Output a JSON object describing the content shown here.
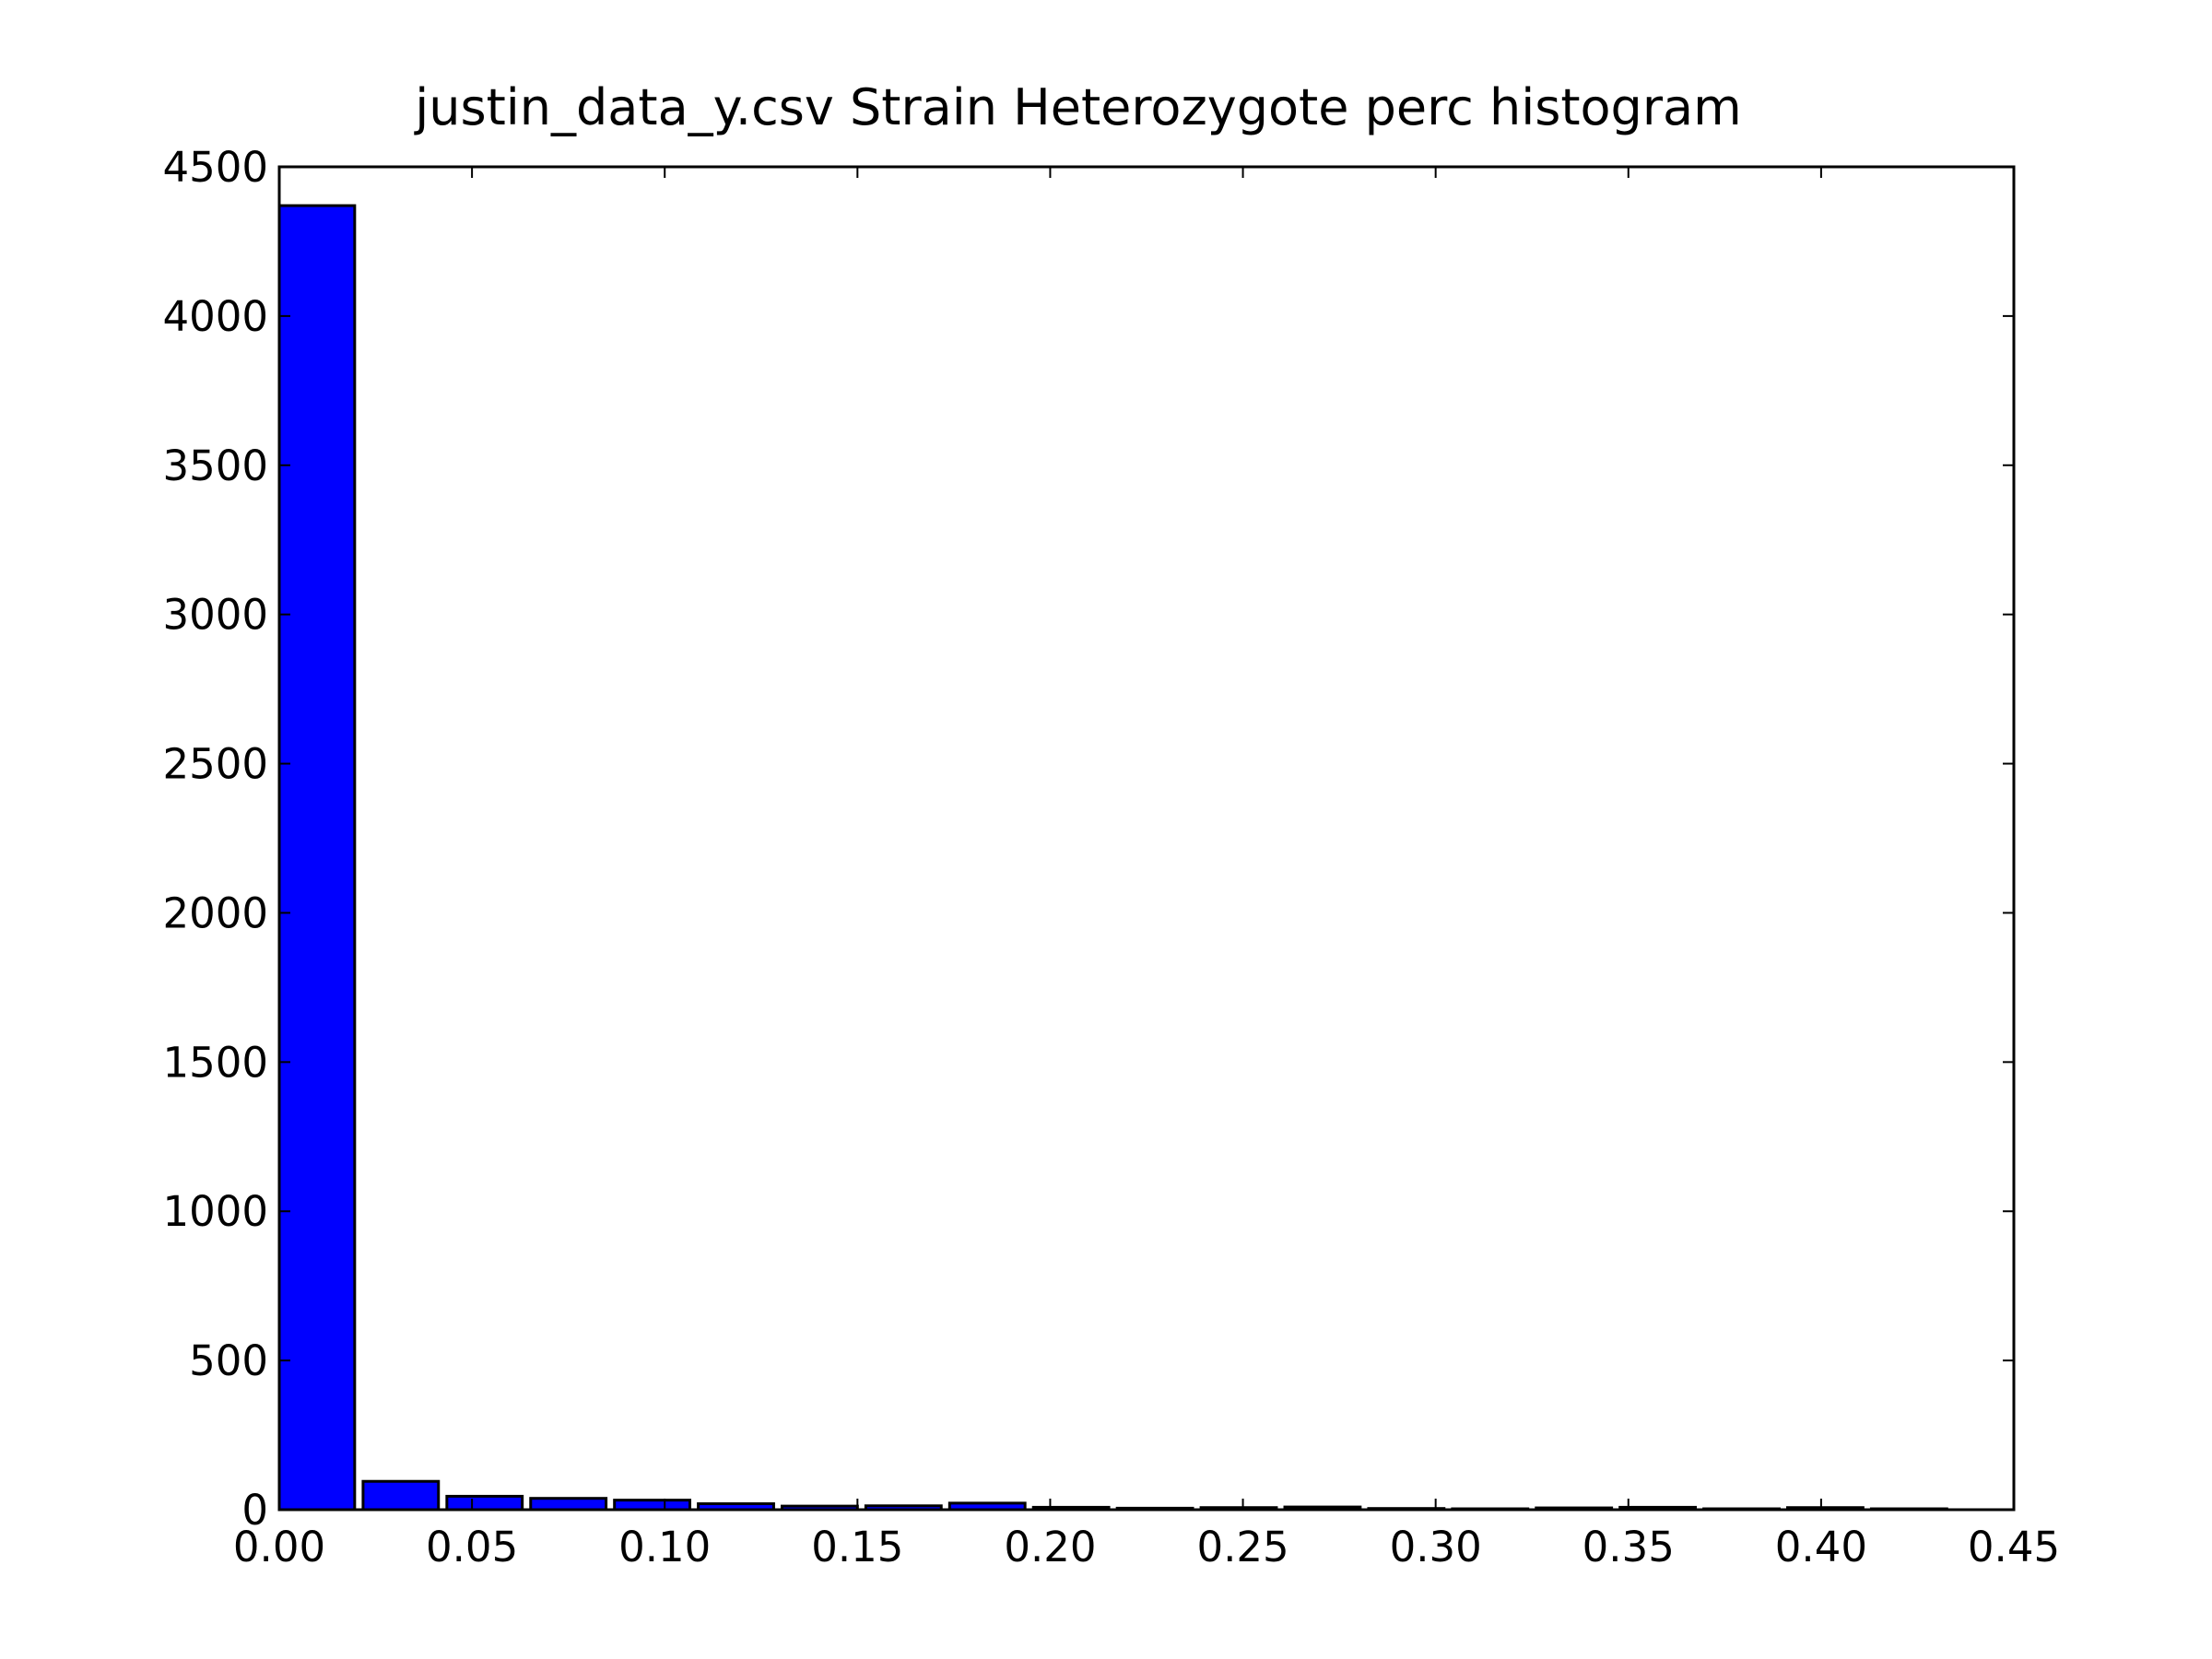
{
  "chart_data": {
    "type": "bar",
    "title": "justin_data_y.csv Strain Heterozygote perc histogram",
    "xlabel": "",
    "ylabel": "",
    "xlim": [
      0,
      0.45
    ],
    "ylim": [
      0,
      4500
    ],
    "x_ticks": [
      "0.00",
      "0.05",
      "0.10",
      "0.15",
      "0.20",
      "0.25",
      "0.30",
      "0.35",
      "0.40",
      "0.45"
    ],
    "y_ticks": [
      "0",
      "500",
      "1000",
      "1500",
      "2000",
      "2500",
      "3000",
      "3500",
      "4000",
      "4500"
    ],
    "grid": false,
    "bar_color": "#0000ff",
    "bar_edge_color": "#000000",
    "bin_width": 0.02174,
    "bin_starts": [
      0.0,
      0.02174,
      0.04348,
      0.06522,
      0.08696,
      0.1087,
      0.13043,
      0.15217,
      0.17391,
      0.19565,
      0.21739,
      0.23913,
      0.26087,
      0.28261,
      0.30435,
      0.32609,
      0.34783,
      0.36957,
      0.3913,
      0.41304
    ],
    "values": [
      4370,
      95,
      45,
      38,
      32,
      20,
      12,
      13,
      22,
      8,
      5,
      7,
      9,
      4,
      3,
      6,
      8,
      3,
      7,
      3
    ]
  }
}
